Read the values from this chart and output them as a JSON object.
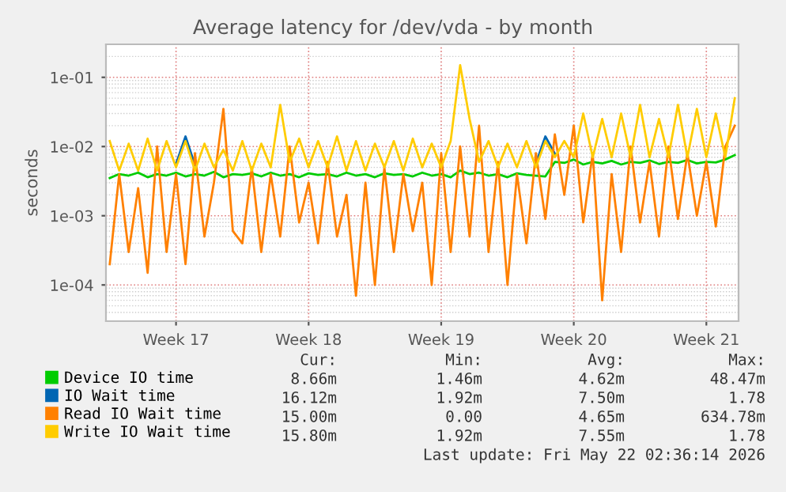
{
  "chart_data": {
    "type": "line",
    "title": "Average latency for /dev/vda - by month",
    "ylabel": "seconds",
    "categories": [
      null,
      null,
      null,
      null,
      null,
      null,
      null,
      "Week 17",
      null,
      null,
      null,
      null,
      null,
      null,
      null,
      null,
      null,
      null,
      null,
      null,
      null,
      "Week 18",
      null,
      null,
      null,
      null,
      null,
      null,
      null,
      null,
      null,
      null,
      null,
      null,
      null,
      "Week 19",
      null,
      null,
      null,
      null,
      null,
      null,
      null,
      null,
      null,
      null,
      null,
      null,
      null,
      "Week 20",
      null,
      null,
      null,
      null,
      null,
      null,
      null,
      null,
      null,
      null,
      null,
      null,
      null,
      "Week 21",
      null,
      null,
      null
    ],
    "series": [
      {
        "name": "Device IO time",
        "color": "#00cc00",
        "values": [
          0.0035,
          0.004,
          0.0038,
          0.0042,
          0.0036,
          0.004,
          0.0038,
          0.0042,
          0.0037,
          0.004,
          0.0038,
          0.0043,
          0.0036,
          0.004,
          0.0039,
          0.0041,
          0.0037,
          0.0042,
          0.0038,
          0.004,
          0.0036,
          0.0041,
          0.0039,
          0.004,
          0.0037,
          0.0042,
          0.0038,
          0.004,
          0.0036,
          0.0041,
          0.0039,
          0.004,
          0.0037,
          0.0042,
          0.0038,
          0.004,
          0.0036,
          0.0045,
          0.004,
          0.0042,
          0.0038,
          0.004,
          0.0036,
          0.0041,
          0.0039,
          0.0038,
          0.0037,
          0.006,
          0.0058,
          0.0065,
          0.0055,
          0.006,
          0.0057,
          0.0062,
          0.0055,
          0.006,
          0.0058,
          0.0063,
          0.0056,
          0.006,
          0.0058,
          0.0064,
          0.0057,
          0.006,
          0.0059,
          0.0065,
          0.0075
        ]
      },
      {
        "name": "IO Wait time",
        "color": "#0066b3",
        "values": [
          null,
          null,
          null,
          null,
          null,
          null,
          null,
          0.0056,
          0.014,
          0.0054,
          null,
          null,
          null,
          null,
          null,
          null,
          null,
          null,
          null,
          null,
          null,
          null,
          null,
          null,
          null,
          null,
          null,
          null,
          null,
          null,
          null,
          null,
          null,
          null,
          null,
          null,
          null,
          null,
          null,
          null,
          null,
          null,
          null,
          null,
          null,
          0.0057,
          0.014,
          0.0079,
          null,
          null,
          null,
          null,
          null,
          null,
          null,
          null,
          null,
          null,
          null,
          null,
          null,
          null,
          null,
          null,
          null,
          null,
          null
        ]
      },
      {
        "name": "Read IO Wait time",
        "color": "#ff8000",
        "values": [
          0.0002,
          0.004,
          0.0003,
          0.0025,
          0.00015,
          0.01,
          0.0003,
          0.004,
          0.0002,
          0.008,
          0.0005,
          0.003,
          0.035,
          0.0006,
          0.0004,
          0.005,
          0.0003,
          0.004,
          0.0005,
          0.01,
          0.0008,
          0.003,
          0.0004,
          0.006,
          0.0005,
          0.002,
          7e-05,
          0.003,
          0.0001,
          0.005,
          0.0003,
          0.004,
          0.0006,
          0.003,
          0.0001,
          0.008,
          0.0003,
          0.01,
          0.0005,
          0.02,
          0.0003,
          0.006,
          0.0001,
          0.004,
          0.0004,
          0.008,
          0.0009,
          0.015,
          0.002,
          0.02,
          0.0008,
          0.008,
          6e-05,
          0.004,
          0.0003,
          0.01,
          0.0008,
          0.006,
          0.0005,
          0.01,
          0.0009,
          0.008,
          0.001,
          0.006,
          0.0007,
          0.01,
          0.02
        ]
      },
      {
        "name": "Write IO Wait time",
        "color": "#ffcc00",
        "values": [
          0.012,
          0.0045,
          0.011,
          0.0045,
          0.013,
          0.0045,
          0.012,
          0.005,
          0.012,
          0.0045,
          0.011,
          0.005,
          0.009,
          0.0045,
          0.012,
          0.0045,
          0.011,
          0.005,
          0.04,
          0.006,
          0.013,
          0.005,
          0.012,
          0.005,
          0.014,
          0.0045,
          0.012,
          0.0045,
          0.011,
          0.005,
          0.012,
          0.0045,
          0.013,
          0.005,
          0.011,
          0.005,
          0.012,
          0.15,
          0.025,
          0.006,
          0.012,
          0.005,
          0.011,
          0.005,
          0.012,
          0.005,
          0.012,
          0.007,
          0.012,
          0.007,
          0.03,
          0.007,
          0.025,
          0.007,
          0.03,
          0.007,
          0.04,
          0.007,
          0.025,
          0.007,
          0.04,
          0.007,
          0.035,
          0.007,
          0.03,
          0.007,
          0.05
        ]
      }
    ],
    "log": true,
    "ylim": [
      3e-05,
      0.3
    ],
    "yticks": [
      {
        "value": 0.0001,
        "label": "1e-04"
      },
      {
        "value": 0.001,
        "label": "1e-03"
      },
      {
        "value": 0.01,
        "label": "1e-02"
      },
      {
        "value": 0.1,
        "label": "1e-01"
      }
    ],
    "grid": true,
    "legend": "bottom",
    "marker": "none",
    "line_style": "solid",
    "annotations": [
      "Cur:",
      "Min:",
      "Avg:",
      "Max:",
      "8.66m",
      "1.46m",
      "4.62m",
      "48.47m",
      "16.12m",
      "1.92m",
      "7.50m",
      "1.78",
      "15.00m",
      "0.00",
      "4.65m",
      "634.78m",
      "15.80m",
      "1.92m",
      "7.55m",
      "1.78",
      "Last update: Fri May 22 02:36:14 2026"
    ]
  }
}
